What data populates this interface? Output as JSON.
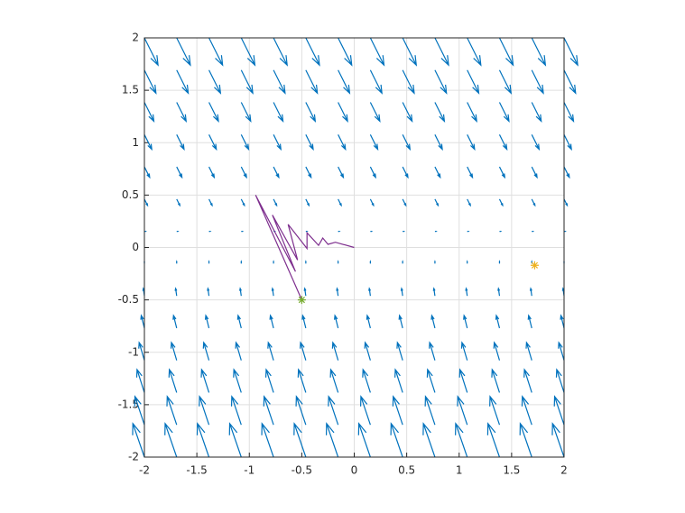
{
  "chart_data": {
    "type": "quiver",
    "xlim": [
      -2,
      2
    ],
    "ylim": [
      -2,
      2
    ],
    "xticks": [
      -2,
      -1.5,
      -1,
      -0.5,
      0,
      0.5,
      1,
      1.5,
      2
    ],
    "yticks": [
      -2,
      -1.5,
      -1,
      -0.5,
      0,
      0.5,
      1,
      1.5,
      2
    ],
    "grid": true,
    "field": {
      "color": "#0072bd",
      "x": [
        -2,
        -1.6923,
        -1.3846,
        -1.0769,
        -0.7692,
        -0.4615,
        -0.1538,
        0.1538,
        0.4615,
        0.7692,
        1.0769,
        1.3846,
        1.6923,
        2
      ],
      "y": [
        -2,
        -1.6923,
        -1.3846,
        -1.0769,
        -0.7692,
        -0.4615,
        -0.1538,
        0.1538,
        0.4615,
        0.7692,
        1.0769,
        1.3846,
        1.6923,
        2
      ],
      "u": [
        -0.11,
        -0.09,
        -0.07,
        -0.05,
        -0.03,
        -0.01,
        0,
        0.01,
        0.03,
        0.05,
        0.07,
        0.09,
        0.11,
        0.13
      ],
      "v": [
        0.32,
        0.27,
        0.22,
        0.17,
        0.12,
        0.07,
        0.02,
        0,
        -0.06,
        -0.1,
        -0.14,
        -0.18,
        -0.22,
        -0.26
      ]
    },
    "series": [
      {
        "kind": "line",
        "color": "#7e2f8e",
        "x": [
          -0.5,
          -0.94,
          -0.56,
          -0.78,
          -0.54,
          -0.63,
          -0.45,
          -0.45,
          -0.34,
          -0.3,
          -0.25,
          -0.18,
          0
        ],
        "y": [
          -0.5,
          0.5,
          -0.23,
          0.31,
          -0.12,
          0.22,
          -0.01,
          0.14,
          0.02,
          0.09,
          0.03,
          0.05,
          0
        ]
      },
      {
        "kind": "star",
        "color": "#77ac30",
        "x": [
          -0.5
        ],
        "y": [
          -0.5
        ]
      },
      {
        "kind": "star",
        "color": "#edb120",
        "x": [
          1.72
        ],
        "y": [
          -0.17
        ]
      }
    ]
  }
}
